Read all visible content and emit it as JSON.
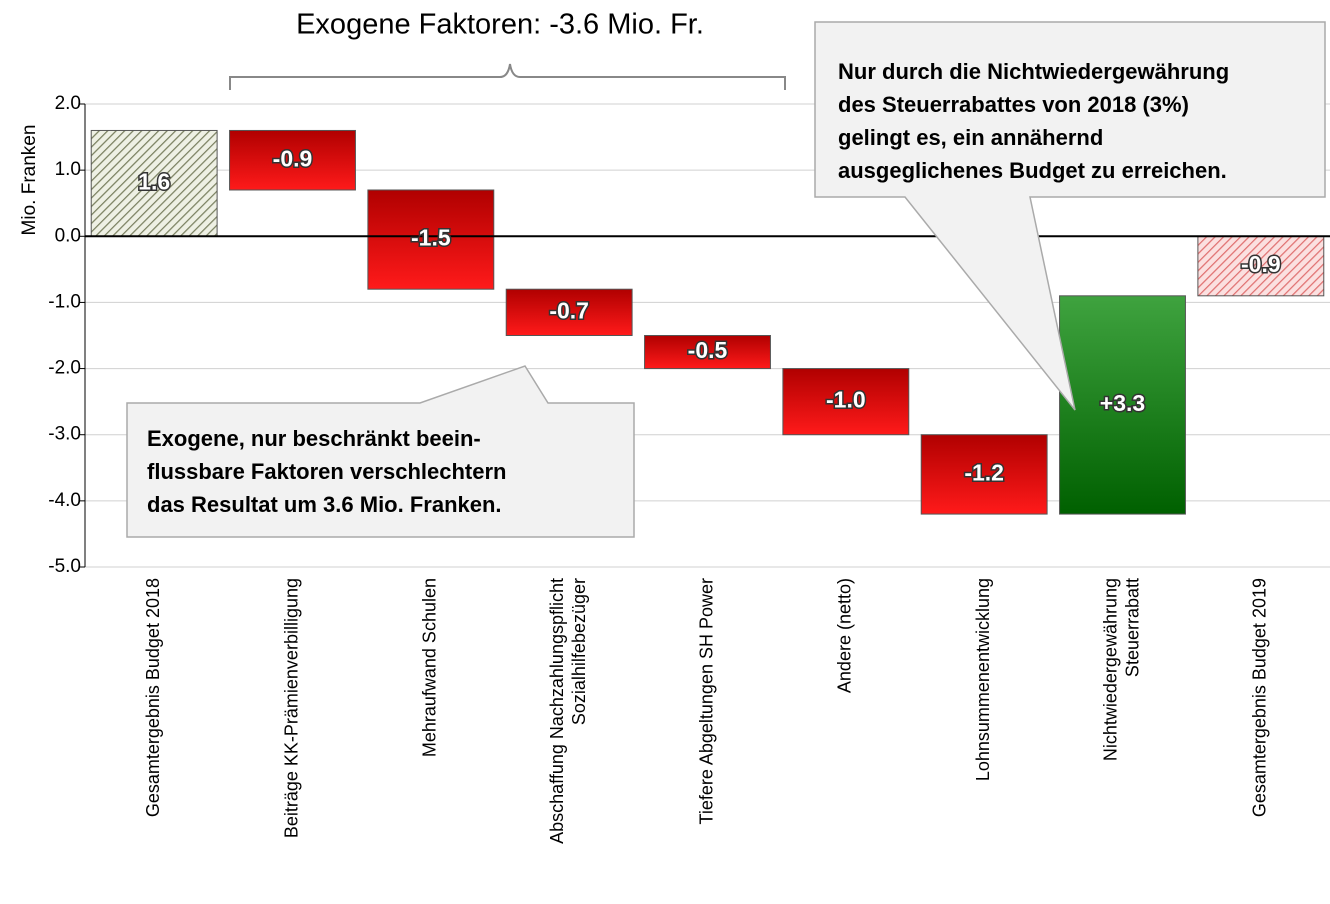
{
  "chart_data": {
    "type": "waterfall",
    "title": "Exogene Faktoren: -3.6 Mio. Fr.",
    "y_label": "Mio. Franken",
    "categories": [
      [
        "Gesamtergebnis Budget 2018"
      ],
      [
        "Beiträge KK-Prämienverbilligung"
      ],
      [
        "Mehraufwand Schulen"
      ],
      [
        "Abschaffung Nachzahlungspflicht",
        "Sozialhilfebezüger"
      ],
      [
        "Tiefere Abgeltungen SH Power"
      ],
      [
        "Andere (netto)"
      ],
      [
        "Lohnsummenentwicklung"
      ],
      [
        "Nichtwiedergewährung",
        "Steuerrabatt"
      ],
      [
        "Gesamtergebnis Budget 2019"
      ]
    ],
    "values": [
      1.6,
      -0.9,
      -1.5,
      -0.7,
      -0.5,
      -1.0,
      -1.2,
      3.3,
      -0.9
    ],
    "value_labels": [
      "1.6",
      "-0.9",
      "-1.5",
      "-0.7",
      "-0.5",
      "-1.0",
      "-1.2",
      "+3.3",
      "-0.9"
    ],
    "totals": [
      true,
      false,
      false,
      false,
      false,
      false,
      false,
      false,
      true
    ],
    "colors": [
      "#c8ccb4",
      "#e00000",
      "#e00000",
      "#e00000",
      "#e00000",
      "#e00000",
      "#e00000",
      "#1f7a1f",
      "#f0a0a0"
    ],
    "ylim": [
      -5,
      2
    ],
    "yticks": [
      {
        "value": 2,
        "label": "2.0"
      },
      {
        "value": 1,
        "label": "1.0"
      },
      {
        "value": 0,
        "label": "0.0"
      },
      {
        "value": -1,
        "label": "-1.0"
      },
      {
        "value": -2,
        "label": "-2.0"
      },
      {
        "value": -3,
        "label": "-3.0"
      },
      {
        "value": -4,
        "label": "-4.0"
      },
      {
        "value": -5,
        "label": "-5.0"
      }
    ],
    "grid": true,
    "annotations": [
      [
        "Exogene, nur beschränkt beein-",
        "flussbare Faktoren verschlechtern",
        "das Resultat um 3.6 Mio. Franken."
      ],
      [
        "Nur durch die Nichtwiedergewährung",
        "des Steuerrabattes von 2018 (3%)",
        "gelingt es, ein annähernd",
        "ausgeglichenes Budget zu erreichen."
      ]
    ]
  }
}
